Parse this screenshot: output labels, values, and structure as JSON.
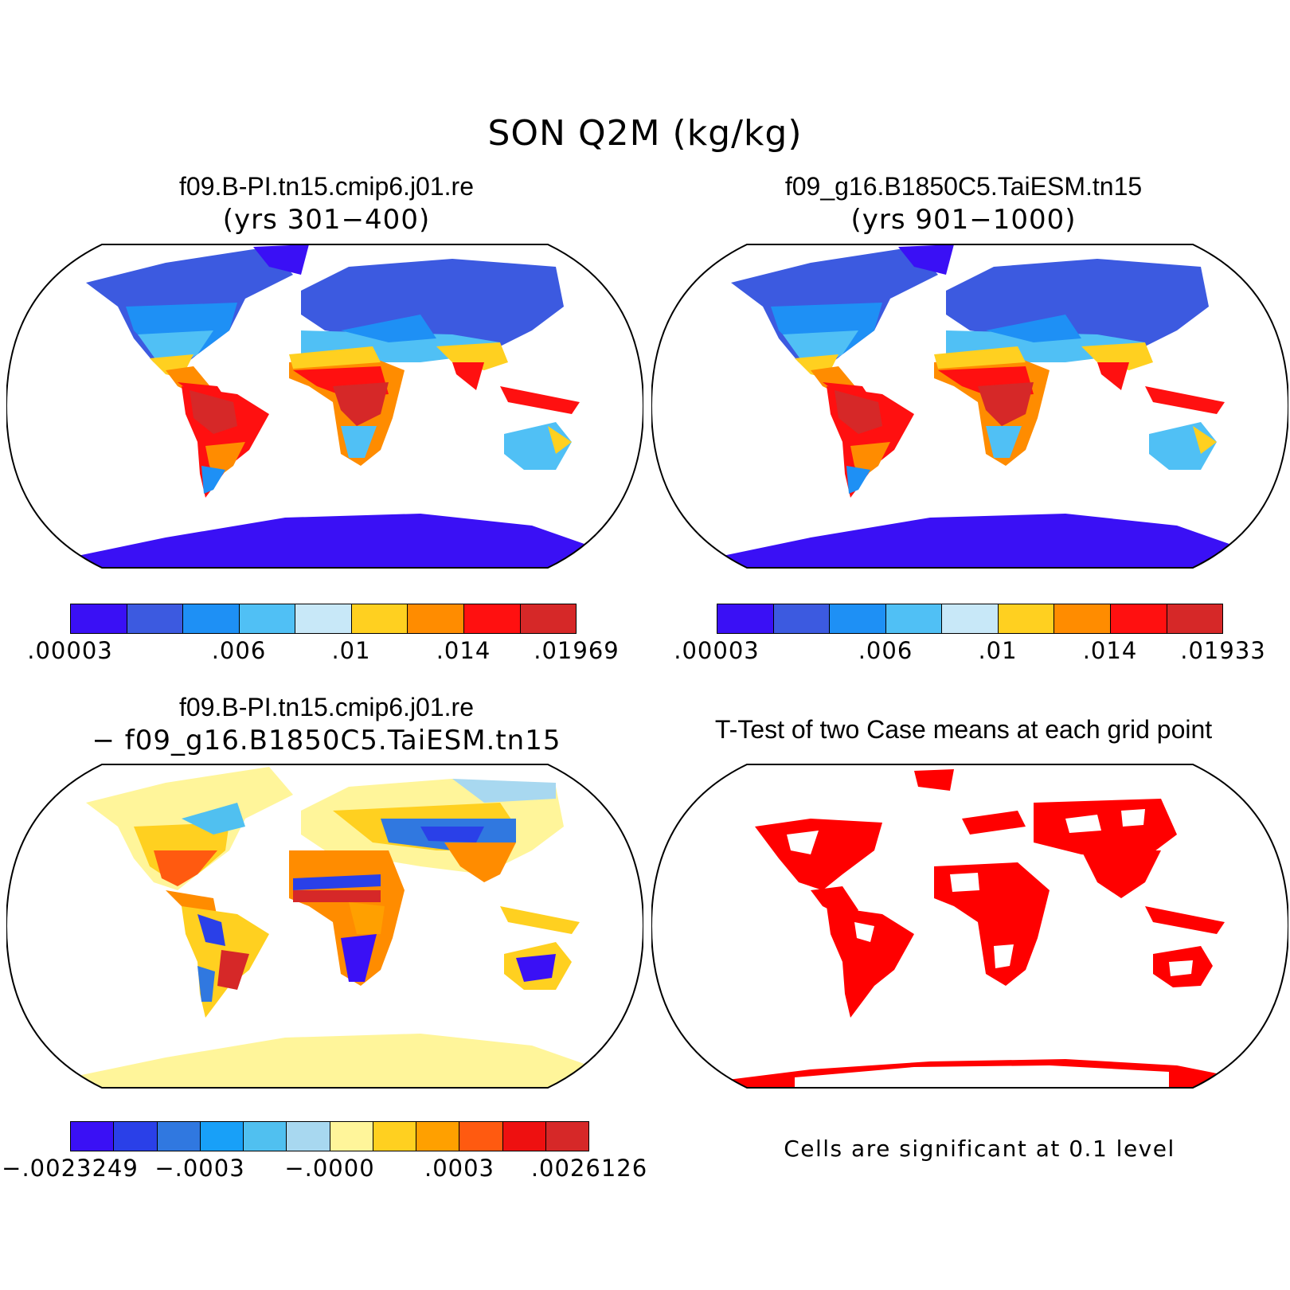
{
  "title": "SON Q2M (kg/kg)",
  "panels": [
    {
      "title": "f09.B-PI.tn15.cmip6.j01.re",
      "subtitle": "(yrs 301−400)",
      "colorbar": {
        "colors": [
          "#3a10f5",
          "#3c5ae0",
          "#1e90f5",
          "#50c0f5",
          "#c8e8f8",
          "#ffd020",
          "#ff8c00",
          "#ff1010",
          "#d62828"
        ],
        "tick_labels": [
          ".00003",
          ".006",
          ".01",
          ".014",
          ".01969"
        ]
      }
    },
    {
      "title": "f09_g16.B1850C5.TaiESM.tn15",
      "subtitle": "(yrs 901−1000)",
      "colorbar": {
        "colors": [
          "#3a10f5",
          "#3c5ae0",
          "#1e90f5",
          "#50c0f5",
          "#c8e8f8",
          "#ffd020",
          "#ff8c00",
          "#ff1010",
          "#d62828"
        ],
        "tick_labels": [
          ".00003",
          ".006",
          ".01",
          ".014",
          ".01933"
        ]
      }
    },
    {
      "title": "f09.B-PI.tn15.cmip6.j01.re",
      "subtitle": "− f09_g16.B1850C5.TaiESM.tn15",
      "colorbar": {
        "colors": [
          "#3a10f5",
          "#2a40e8",
          "#3078e0",
          "#18a0f8",
          "#50c0f0",
          "#a8d8f0",
          "#fff59a",
          "#ffd020",
          "#ffa000",
          "#ff5a10",
          "#ee1010",
          "#d62828"
        ],
        "tick_labels": [
          "−.0023249",
          "−.0003",
          "−.0000",
          ".0003",
          ".0026126"
        ]
      }
    },
    {
      "title": "T-Test of two Case means at each grid point",
      "note": "Cells are significant at 0.1 level",
      "fill_color": "#ff0000"
    }
  ]
}
